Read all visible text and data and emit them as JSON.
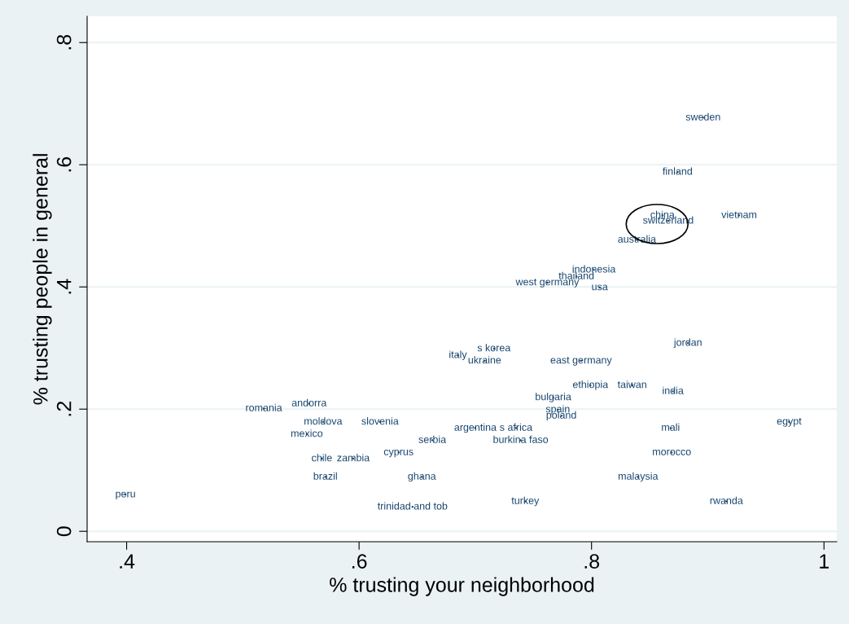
{
  "chart_data": {
    "type": "scatter",
    "xlabel": "% trusting your neighborhood",
    "ylabel": "% trusting people in general",
    "xlim": [
      0.366,
      1.011
    ],
    "ylim": [
      -0.017,
      0.843
    ],
    "xticks": [
      {
        "value": 0.4,
        "label": ".4"
      },
      {
        "value": 0.6,
        "label": ".6"
      },
      {
        "value": 0.8,
        "label": ".8"
      },
      1
    ],
    "yticks": [
      0,
      {
        "value": 0.2,
        "label": ".2"
      },
      {
        "value": 0.4,
        "label": ".4"
      },
      {
        "value": 0.6,
        "label": ".6"
      },
      {
        "value": 0.8,
        "label": ".8"
      }
    ],
    "grid": "y",
    "marker": "circle",
    "series": [
      {
        "color": "#1a476f",
        "x": [
          0.896,
          0.874,
          0.861,
          0.866,
          0.927,
          0.839,
          0.802,
          0.787,
          0.762,
          0.807,
          0.883,
          0.716,
          0.685,
          0.708,
          0.791,
          0.799,
          0.835,
          0.87,
          0.767,
          0.518,
          0.557,
          0.771,
          0.774,
          0.569,
          0.618,
          0.97,
          0.7,
          0.735,
          0.868,
          0.555,
          0.663,
          0.739,
          0.869,
          0.634,
          0.568,
          0.595,
          0.571,
          0.654,
          0.84,
          0.399,
          0.743,
          0.916,
          0.646
        ],
        "values": [
          0.677,
          0.588,
          0.517,
          0.508,
          0.517,
          0.477,
          0.428,
          0.417,
          0.407,
          0.399,
          0.308,
          0.299,
          0.288,
          0.279,
          0.279,
          0.239,
          0.239,
          0.229,
          0.219,
          0.201,
          0.209,
          0.199,
          0.189,
          0.179,
          0.179,
          0.179,
          0.169,
          0.169,
          0.169,
          0.159,
          0.149,
          0.149,
          0.129,
          0.129,
          0.119,
          0.119,
          0.089,
          0.089,
          0.089,
          0.06,
          0.049,
          0.049,
          0.04
        ],
        "value_labels": [
          "sweden",
          "finland",
          "china",
          "switzerland",
          "vietnam",
          "australia",
          "indonesia",
          "thailand",
          "west germany",
          "usa",
          "jordan",
          "s korea",
          "italy",
          "ukraine",
          "east germany",
          "ethiopia",
          "taiwan",
          "india",
          "bulgaria",
          "romania",
          "andorra",
          "spain",
          "poland",
          "moldova",
          "slovenia",
          "egypt",
          "argentina",
          "s africa",
          "mali",
          "mexico",
          "serbia",
          "burkina faso",
          "morocco",
          "cyprus",
          "chile",
          "zambia",
          "brazil",
          "ghana",
          "malaysia",
          "peru",
          "turkey",
          "rwanda",
          "trinidad and tob"
        ]
      }
    ]
  }
}
